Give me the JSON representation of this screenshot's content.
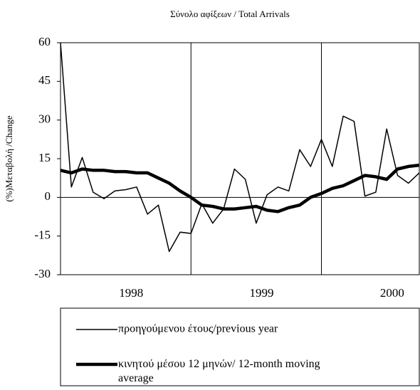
{
  "chart_data": {
    "type": "line",
    "title": "Σύνολο αφίξεων / Total Arrivals",
    "y_label": "(%)Μεταβολή /Change",
    "categories": [
      null,
      null,
      null,
      null,
      null,
      null,
      "1998",
      null,
      null,
      null,
      null,
      null,
      null,
      null,
      null,
      null,
      null,
      null,
      "1999",
      null,
      null,
      null,
      null,
      null,
      null,
      null,
      null,
      null,
      null,
      null,
      "2000",
      null,
      null,
      null
    ],
    "series": [
      {
        "name": "προηγούμενου έτους/previous year",
        "color": "#000000",
        "width": 1.5,
        "values": [
          60,
          4,
          15.5,
          2,
          -0.5,
          2.5,
          3,
          4,
          -6.5,
          -3,
          -21,
          -13.5,
          -14,
          -2.5,
          -10,
          -4.5,
          11,
          7,
          -10,
          1,
          4,
          2.5,
          18.5,
          12,
          22.5,
          12,
          31.5,
          29.5,
          0.5,
          2,
          26.5,
          8.5,
          5.5,
          9.5
        ]
      },
      {
        "name": "κινητού μέσου 12 μηνών/ 12-month moving average",
        "color": "#000000",
        "width": 4.5,
        "values": [
          10.5,
          9.5,
          11,
          10.5,
          10.5,
          10,
          10,
          9.5,
          9.5,
          7.5,
          5.5,
          2.5,
          0,
          -3,
          -3.5,
          -4.5,
          -4.5,
          -4,
          -3.5,
          -5,
          -5.5,
          -4,
          -3,
          0,
          1.5,
          3.5,
          4.5,
          6.5,
          8.5,
          8,
          7,
          11,
          12,
          12.5
        ]
      }
    ],
    "ylim": [
      -30,
      60
    ],
    "yticks": [
      -30,
      -15,
      0,
      15,
      30,
      45,
      60
    ]
  }
}
